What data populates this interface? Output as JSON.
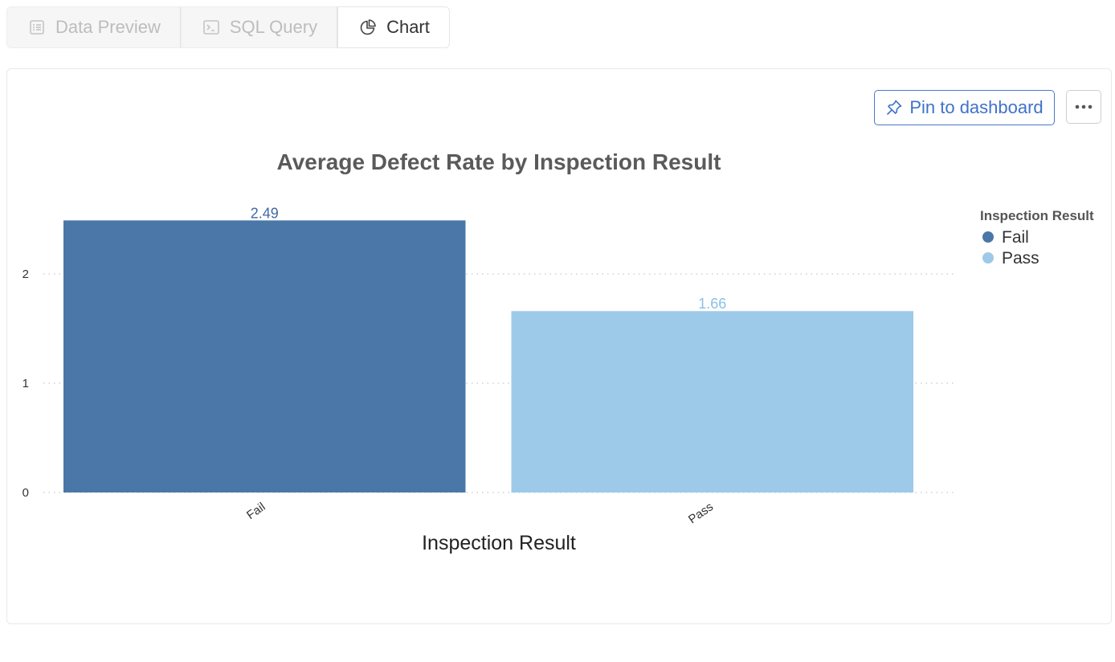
{
  "tabs": [
    {
      "label": "Data Preview",
      "icon": "table-icon",
      "active": false
    },
    {
      "label": "SQL Query",
      "icon": "terminal-icon",
      "active": false
    },
    {
      "label": "Chart",
      "icon": "pie-chart-icon",
      "active": true
    }
  ],
  "toolbar": {
    "pin_label": "Pin to dashboard",
    "pin_icon": "pin-icon",
    "more_icon": "more-horizontal-icon"
  },
  "colors": {
    "accent": "#3f72c9",
    "fail": "#4a77a8",
    "pass": "#9dcae9"
  },
  "chart_data": {
    "type": "bar",
    "title": "Average Defect Rate by Inspection Result",
    "xlabel": "Inspection Result",
    "ylabel": "",
    "categories": [
      "Fail",
      "Pass"
    ],
    "values": [
      2.49,
      1.66
    ],
    "data_labels": [
      "2.49",
      "1.66"
    ],
    "yticks": [
      "0",
      "1",
      "2"
    ],
    "ylim": [
      0,
      2.6
    ],
    "grid": true,
    "legend": {
      "title": "Inspection Result",
      "position": "right",
      "entries": [
        "Fail",
        "Pass"
      ]
    }
  }
}
